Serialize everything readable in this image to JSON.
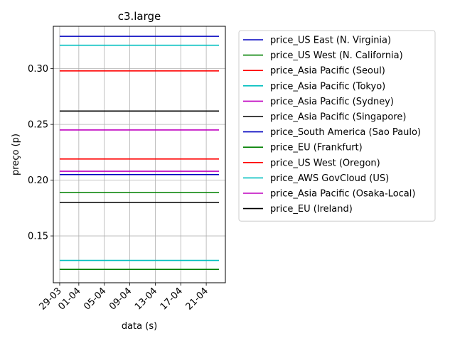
{
  "chart_data": {
    "type": "line",
    "title": "c3.large",
    "xlabel": "data (s)",
    "ylabel": "preço (p)",
    "x_tick_labels": [
      "29-03",
      "01-04",
      "05-04",
      "09-04",
      "13-04",
      "17-04",
      "21-04"
    ],
    "x_ticks": [
      "2019-03-29",
      "2019-04-01",
      "2019-04-05",
      "2019-04-09",
      "2019-04-13",
      "2019-04-17",
      "2019-04-21"
    ],
    "x_range": [
      "2019-03-28",
      "2019-04-24"
    ],
    "series_x_range": [
      "2019-03-29",
      "2019-04-23"
    ],
    "y_ticks": [
      0.15,
      0.2,
      0.25,
      0.3
    ],
    "y_tick_labels": [
      "0.15",
      "0.20",
      "0.25",
      "0.30"
    ],
    "ylim": [
      0.108,
      0.338
    ],
    "grid": true,
    "legend_position": "outside right",
    "series": [
      {
        "name": "price_US East (N. Virginia)",
        "value": 0.329,
        "color": "#0000bf"
      },
      {
        "name": "price_US West (N. California)",
        "value": 0.12,
        "color": "#008000"
      },
      {
        "name": "price_Asia Pacific (Seoul)",
        "value": 0.298,
        "color": "#ff0000"
      },
      {
        "name": "price_Asia Pacific (Tokyo)",
        "value": 0.128,
        "color": "#00bfbf"
      },
      {
        "name": "price_Asia Pacific (Sydney)",
        "value": 0.245,
        "color": "#bf00bf"
      },
      {
        "name": "price_Asia Pacific (Singapore)",
        "value": 0.262,
        "color": "#000000"
      },
      {
        "name": "price_South America (Sao Paulo)",
        "value": 0.205,
        "color": "#0000bf"
      },
      {
        "name": "price_EU (Frankfurt)",
        "value": 0.189,
        "color": "#008000"
      },
      {
        "name": "price_US West (Oregon)",
        "value": 0.219,
        "color": "#ff0000"
      },
      {
        "name": "price_AWS GovCloud (US)",
        "value": 0.321,
        "color": "#00bfbf"
      },
      {
        "name": "price_Asia Pacific (Osaka-Local)",
        "value": 0.208,
        "color": "#bf00bf"
      },
      {
        "name": "price_EU (Ireland)",
        "value": 0.18,
        "color": "#000000"
      }
    ]
  }
}
